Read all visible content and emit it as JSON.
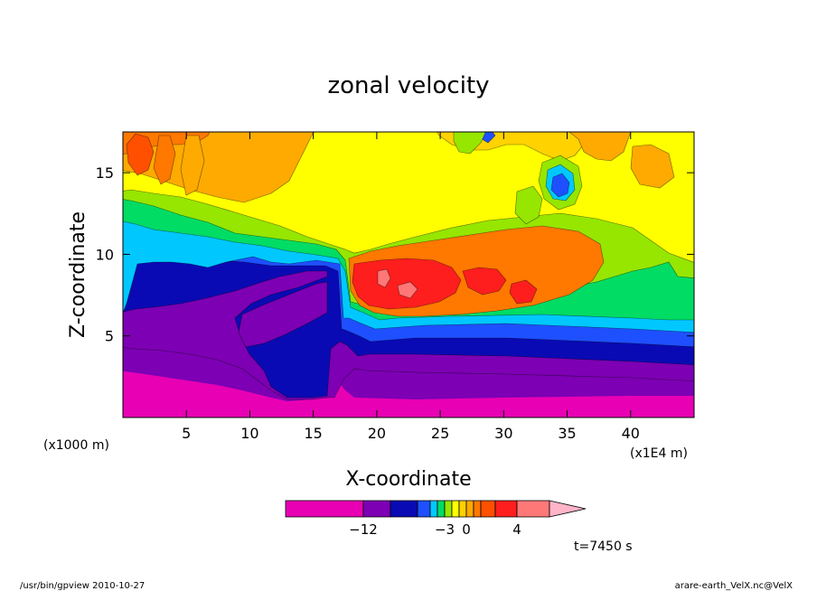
{
  "chart_data": {
    "type": "heatmap",
    "title": "zonal velocity",
    "xlabel": "X-coordinate",
    "ylabel": "Z-coordinate",
    "x_unit_label": "(x1E4 m)",
    "y_unit_label": "(x1000 m)",
    "xlim": [
      0,
      45
    ],
    "ylim": [
      0,
      17.5
    ],
    "x_ticks": [
      5,
      10,
      15,
      20,
      25,
      30,
      35,
      40
    ],
    "y_ticks": [
      5,
      10,
      15
    ],
    "colorbar": {
      "labels": [
        {
          "text": "−12",
          "value": -12
        },
        {
          "text": "−3",
          "value": -3
        },
        {
          "text": "0",
          "value": 0
        },
        {
          "text": "4",
          "value": 4
        }
      ],
      "levels": [
        {
          "value": -20,
          "color": "#e800b4"
        },
        {
          "value": -12,
          "color": "#7d00b4"
        },
        {
          "value": -9,
          "color": "#0a0ab4"
        },
        {
          "value": -6,
          "color": "#1e50ff"
        },
        {
          "value": -5,
          "color": "#00c8ff"
        },
        {
          "value": -4,
          "color": "#00dc64"
        },
        {
          "value": -3,
          "color": "#96e600"
        },
        {
          "value": -2,
          "color": "#ffff00"
        },
        {
          "value": -1,
          "color": "#ffd200"
        },
        {
          "value": 0,
          "color": "#ffaa00"
        },
        {
          "value": 1,
          "color": "#ff7800"
        },
        {
          "value": 2,
          "color": "#ff5000"
        },
        {
          "value": 3,
          "color": "#ff1e1e"
        },
        {
          "value": 4,
          "color": "#ff7878"
        },
        {
          "value": 5,
          "color": "#ffb4c8"
        }
      ]
    },
    "time_label": "t=7450 s"
  },
  "footer": {
    "left": "/usr/bin/gpview  2010-10-27",
    "right": "arare-earth_VelX.nc@VelX"
  }
}
